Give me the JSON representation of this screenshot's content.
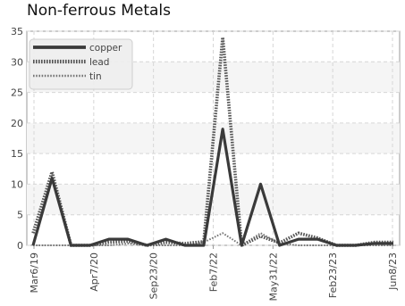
{
  "chart_data": {
    "type": "line",
    "title": "Non-ferrous Metals",
    "xlabel": "",
    "ylabel": "",
    "ylim": [
      0,
      35
    ],
    "yticks": [
      0,
      5,
      10,
      15,
      20,
      25,
      30,
      35
    ],
    "x_tick_labels": [
      "Mar6/19",
      "Apr7/20",
      "Sep23/20",
      "Feb7/22",
      "May31/22",
      "Feb23/23",
      "Jun8/23"
    ],
    "grid": true,
    "legend_position": "top-left",
    "series": [
      {
        "name": "copper",
        "color": "#3a3a3a",
        "style": "solid",
        "values": [
          0,
          11,
          0,
          0,
          1,
          1,
          0,
          1,
          0,
          0,
          19,
          0,
          10,
          0,
          1,
          1,
          0,
          0,
          0.3,
          0.3
        ]
      },
      {
        "name": "lead",
        "color": "#555555",
        "style": "dotted",
        "values": [
          2,
          12,
          0,
          0,
          0.5,
          0.7,
          0,
          0.5,
          0.3,
          0.6,
          34,
          0,
          1.5,
          0.4,
          2,
          1.2,
          0,
          0,
          0.5,
          0.5
        ]
      },
      {
        "name": "tin",
        "color": "#777777",
        "style": "dotted-thin",
        "values": [
          0,
          0,
          0,
          0,
          0,
          0.3,
          0,
          0,
          0,
          0.5,
          2,
          0,
          2,
          0.3,
          0,
          0,
          0,
          0,
          0,
          0
        ]
      }
    ]
  }
}
